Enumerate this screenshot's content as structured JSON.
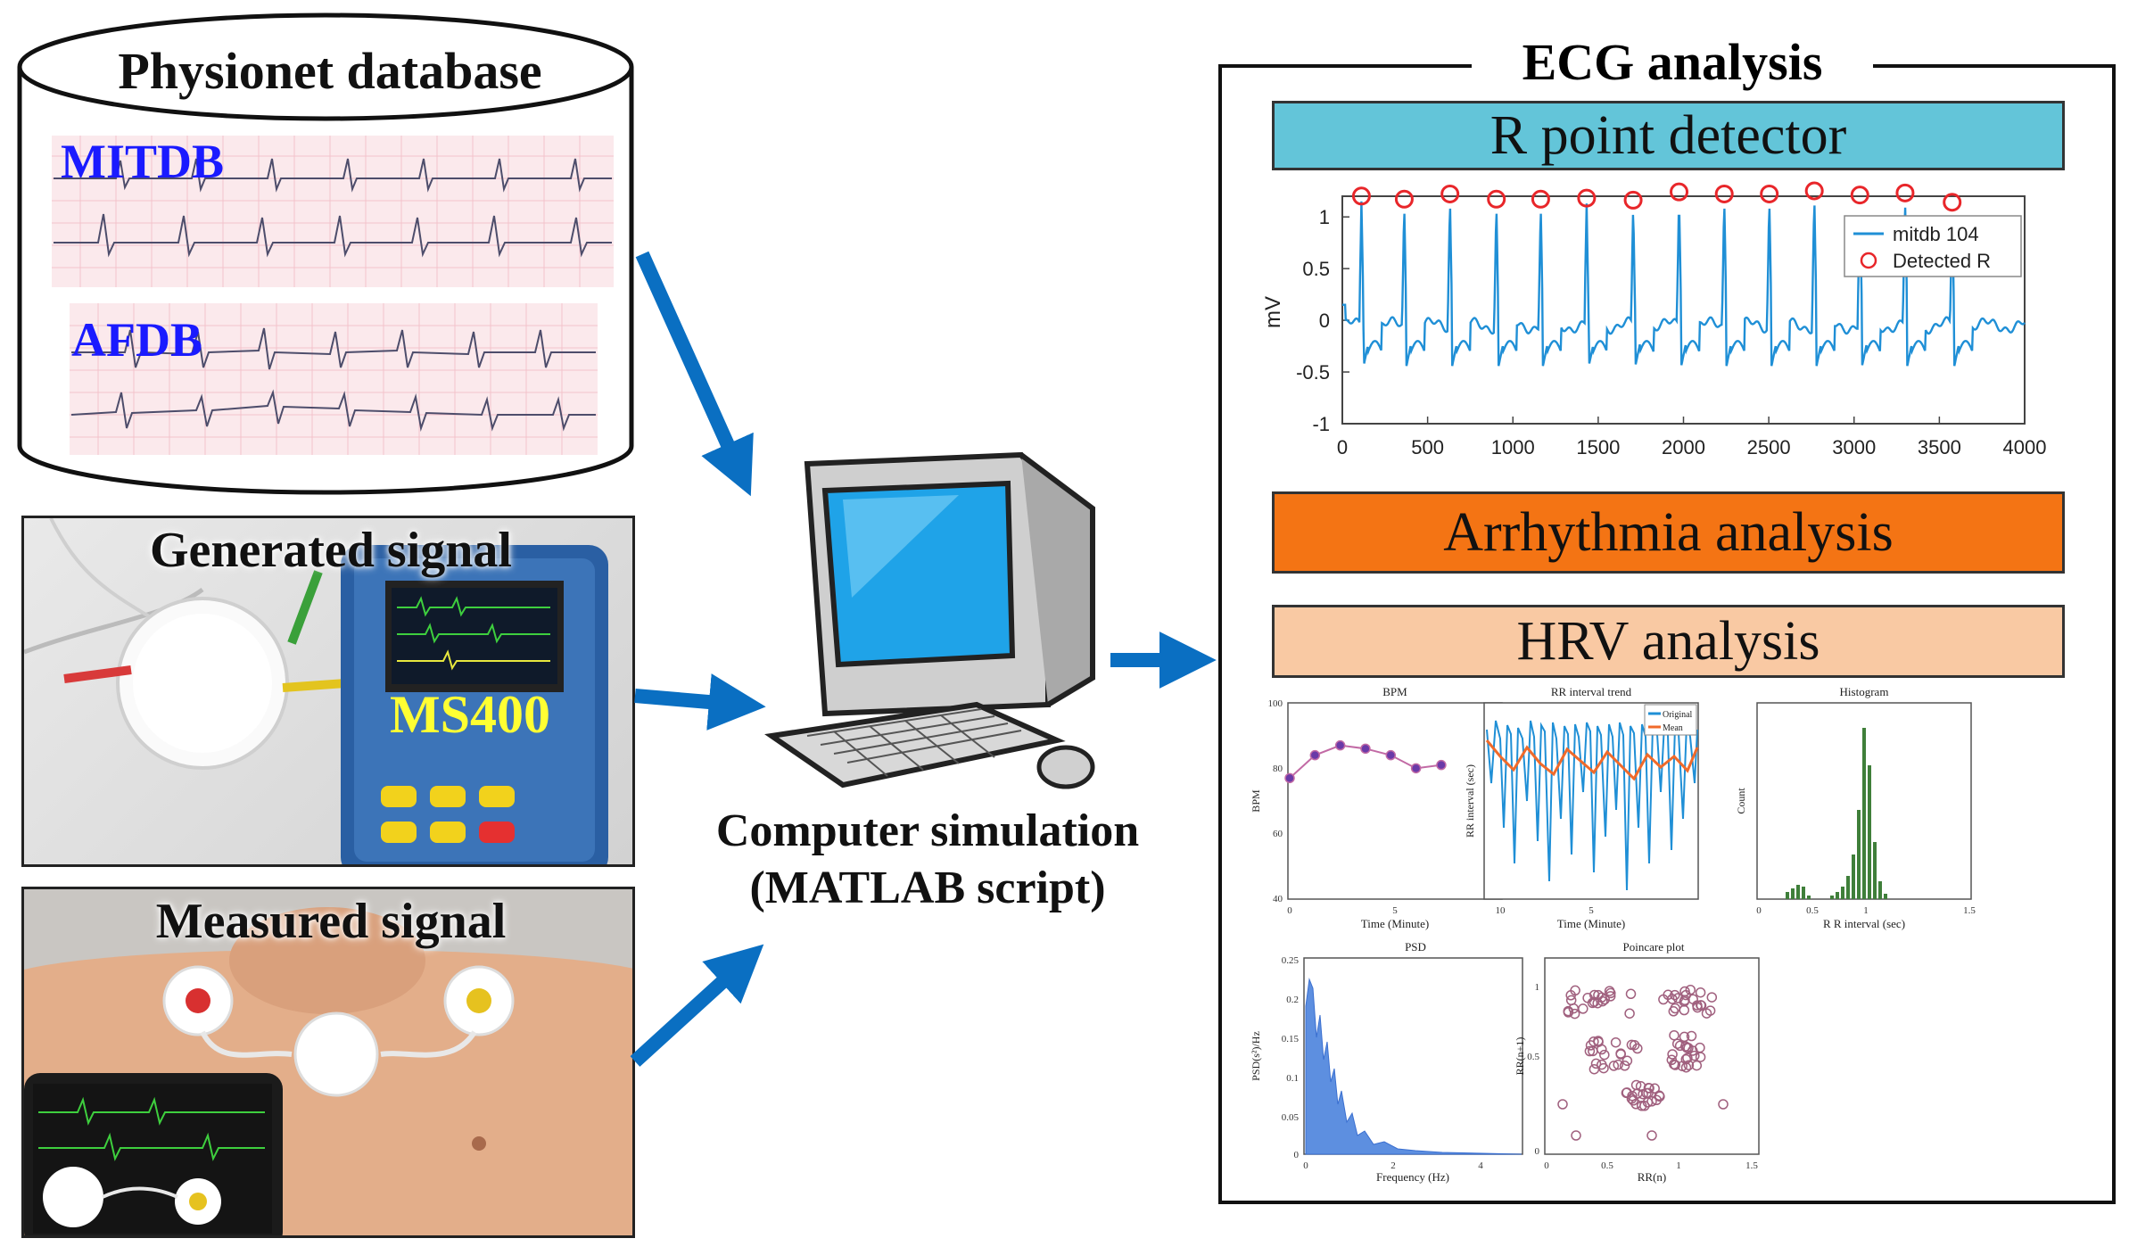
{
  "database": {
    "title": "Physionet database",
    "records": [
      "MITDB",
      "AFDB"
    ]
  },
  "generated": {
    "title": "Generated signal",
    "device": "MS400"
  },
  "measured": {
    "title": "Measured signal"
  },
  "computer": {
    "caption_line1": "Computer simulation",
    "caption_line2": "(MATLAB script)"
  },
  "analysis": {
    "title": "ECG analysis",
    "r_detector": "R point detector",
    "arrhythmia": "Arrhythmia analysis",
    "hrv": "HRV analysis"
  },
  "colors": {
    "arrow": "#0a6fc2",
    "r_banner": "#63c5d9",
    "arrhythmia_banner": "#f47414",
    "hrv_banner": "#f9c9a3",
    "ecg_line": "#1f8fd6",
    "detected": "#e8262a"
  },
  "chart_data": [
    {
      "type": "line",
      "ylabel": "mV",
      "xlim": [
        0,
        4000
      ],
      "ylim": [
        -1,
        1.2
      ],
      "xticks": [
        "0",
        "500",
        "1000",
        "1500",
        "2000",
        "2500",
        "3000",
        "3500",
        "4000"
      ],
      "yticks": [
        "1",
        "0.5",
        "0",
        "-0.5",
        "-1"
      ],
      "legend": [
        "mitdb 104",
        "Detected R"
      ],
      "legend_position": "top-right",
      "r_peaks": [
        [
          112,
          1.15
        ],
        [
          363,
          1.12
        ],
        [
          631,
          1.17
        ],
        [
          903,
          1.12
        ],
        [
          1163,
          1.12
        ],
        [
          1432,
          1.13
        ],
        [
          1705,
          1.11
        ],
        [
          1974,
          1.19
        ],
        [
          2239,
          1.17
        ],
        [
          2503,
          1.17
        ],
        [
          2767,
          1.2
        ],
        [
          3034,
          1.16
        ],
        [
          3299,
          1.18
        ],
        [
          3575,
          1.09
        ]
      ]
    },
    {
      "type": "line",
      "title": "BPM",
      "xlabel": "Time (Minute)",
      "ylabel": "BPM",
      "ylim": [
        40,
        100
      ],
      "xticks": [
        "0",
        "5",
        "10"
      ],
      "yticks": [
        "100",
        "80",
        "60",
        "40"
      ],
      "x": [
        0,
        1.2,
        2.4,
        3.6,
        4.8,
        6.0,
        7.2
      ],
      "values": [
        77,
        84,
        87,
        86,
        84,
        80,
        81
      ]
    },
    {
      "type": "line",
      "title": "RR interval trend",
      "xlabel": "Time (Minute)",
      "ylabel": "RR interval (sec)",
      "legend": [
        "Original",
        "Mean"
      ],
      "xticks": [
        "5"
      ]
    },
    {
      "type": "bar",
      "title": "Histogram",
      "xlabel": "R R interval (sec)",
      "ylabel": "Count",
      "xticks": [
        "0",
        "0.5",
        "1",
        "1.5"
      ]
    },
    {
      "type": "area",
      "title": "PSD",
      "xlabel": "Frequency (Hz)",
      "ylabel": "PSD(s²)/Hz",
      "yticks": [
        "0.25",
        "0.2",
        "0.15",
        "0.1",
        "0.05",
        "0"
      ],
      "xticks": [
        "0",
        "2",
        "4"
      ]
    },
    {
      "type": "scatter",
      "title": "Poincare plot",
      "xlabel": "RR(n)",
      "ylabel": "RR(n+1)",
      "xticks": [
        "0",
        "0.5",
        "1",
        "1.5"
      ],
      "yticks": [
        "1",
        "0.5",
        "0"
      ]
    }
  ]
}
